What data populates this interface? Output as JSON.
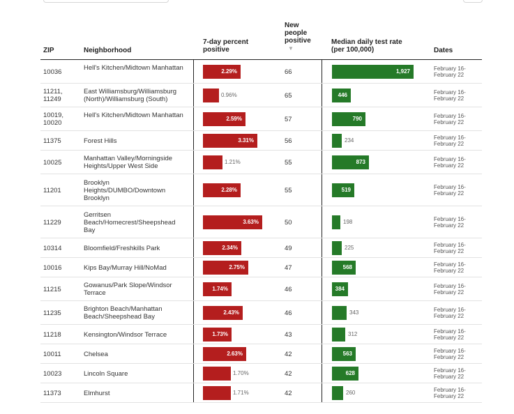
{
  "columns": {
    "zip": "ZIP",
    "neighborhood": "Neighborhood",
    "percent_line1": "7-day percent",
    "percent_line2": "positive",
    "new_line1": "New",
    "new_line2": "people",
    "new_line3": "positive",
    "sort_indicator": "▼",
    "rate_line1": "Median daily test rate",
    "rate_line2": "(per 100,000)",
    "dates": "Dates"
  },
  "colors": {
    "percent_bar": "#b41e1e",
    "rate_bar": "#257a28"
  },
  "rows": [
    {
      "zip": "10036",
      "neighborhood": "Hell's Kitchen/Midtown Manhattan",
      "percent": 2.29,
      "percent_label": "2.29%",
      "new_positive": "66",
      "rate": 1927,
      "rate_label": "1,927",
      "dates": "February 16-February 22"
    },
    {
      "zip": "11211, 11249",
      "neighborhood": "East Williamsburg/Williamsburg (North)/Williamsburg (South)",
      "percent": 0.96,
      "percent_label": "0.96%",
      "new_positive": "65",
      "rate": 446,
      "rate_label": "446",
      "dates": "February 16-February 22"
    },
    {
      "zip": "10019, 10020",
      "neighborhood": "Hell's Kitchen/Midtown Manhattan",
      "percent": 2.59,
      "percent_label": "2.59%",
      "new_positive": "57",
      "rate": 790,
      "rate_label": "790",
      "dates": "February 16-February 22"
    },
    {
      "zip": "11375",
      "neighborhood": "Forest Hills",
      "percent": 3.31,
      "percent_label": "3.31%",
      "new_positive": "56",
      "rate": 234,
      "rate_label": "234",
      "dates": "February 16-February 22"
    },
    {
      "zip": "10025",
      "neighborhood": "Manhattan Valley/Morningside Heights/Upper West Side",
      "percent": 1.21,
      "percent_label": "1.21%",
      "new_positive": "55",
      "rate": 873,
      "rate_label": "873",
      "dates": "February 16-February 22"
    },
    {
      "zip": "11201",
      "neighborhood": "Brooklyn Heights/DUMBO/Downtown Brooklyn",
      "percent": 2.28,
      "percent_label": "2.28%",
      "new_positive": "55",
      "rate": 519,
      "rate_label": "519",
      "dates": "February 16-February 22"
    },
    {
      "zip": "11229",
      "neighborhood": "Gerritsen Beach/Homecrest/Sheepshead Bay",
      "percent": 3.63,
      "percent_label": "3.63%",
      "new_positive": "50",
      "rate": 198,
      "rate_label": "198",
      "dates": "February 16-February 22"
    },
    {
      "zip": "10314",
      "neighborhood": "Bloomfield/Freshkills Park",
      "percent": 2.34,
      "percent_label": "2.34%",
      "new_positive": "49",
      "rate": 225,
      "rate_label": "225",
      "dates": "February 16-February 22"
    },
    {
      "zip": "10016",
      "neighborhood": "Kips Bay/Murray Hill/NoMad",
      "percent": 2.75,
      "percent_label": "2.75%",
      "new_positive": "47",
      "rate": 568,
      "rate_label": "568",
      "dates": "February 16-February 22"
    },
    {
      "zip": "11215",
      "neighborhood": "Gowanus/Park Slope/Windsor Terrace",
      "percent": 1.74,
      "percent_label": "1.74%",
      "new_positive": "46",
      "rate": 384,
      "rate_label": "384",
      "dates": "February 16-February 22"
    },
    {
      "zip": "11235",
      "neighborhood": "Brighton Beach/Manhattan Beach/Sheepshead Bay",
      "percent": 2.43,
      "percent_label": "2.43%",
      "new_positive": "46",
      "rate": 343,
      "rate_label": "343",
      "dates": "February 16-February 22"
    },
    {
      "zip": "11218",
      "neighborhood": "Kensington/Windsor Terrace",
      "percent": 1.73,
      "percent_label": "1.73%",
      "new_positive": "43",
      "rate": 312,
      "rate_label": "312",
      "dates": "February 16-February 22"
    },
    {
      "zip": "10011",
      "neighborhood": "Chelsea",
      "percent": 2.63,
      "percent_label": "2.63%",
      "new_positive": "42",
      "rate": 563,
      "rate_label": "563",
      "dates": "February 16-February 22"
    },
    {
      "zip": "10023",
      "neighborhood": "Lincoln Square",
      "percent": 1.7,
      "percent_label": "1.70%",
      "new_positive": "42",
      "rate": 628,
      "rate_label": "628",
      "dates": "February 16-February 22"
    },
    {
      "zip": "11373",
      "neighborhood": "Elmhurst",
      "percent": 1.71,
      "percent_label": "1.71%",
      "new_positive": "42",
      "rate": 260,
      "rate_label": "260",
      "dates": "February 16-February 22"
    }
  ]
}
